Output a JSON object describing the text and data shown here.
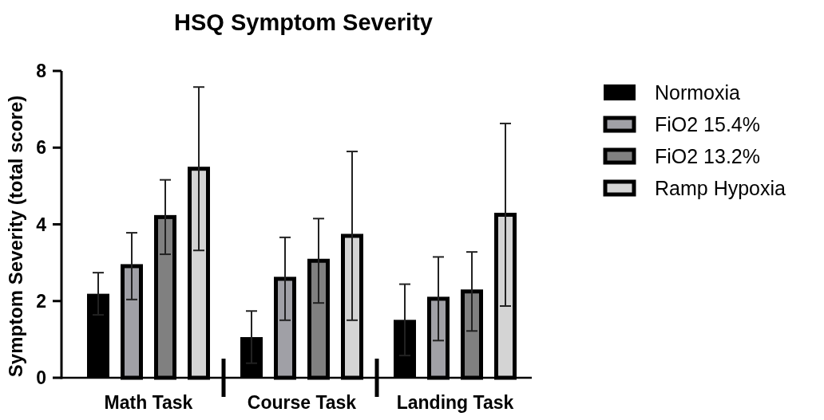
{
  "chart_data": {
    "type": "bar",
    "title": "HSQ Symptom Severity",
    "ylabel": "Symptom Severity (total score)",
    "categories": [
      "Math Task",
      "Course Task",
      "Landing Task"
    ],
    "series": [
      {
        "name": "Normoxia",
        "color": "#000000",
        "values": [
          2.19,
          1.06,
          1.51
        ],
        "errors": [
          0.55,
          0.68,
          0.93
        ]
      },
      {
        "name": "FiO2 15.4%",
        "color": "#a0a0a6",
        "values": [
          2.91,
          2.58,
          2.06
        ],
        "errors": [
          0.87,
          1.08,
          1.09
        ]
      },
      {
        "name": "FiO2 13.2%",
        "color": "#808080",
        "values": [
          4.19,
          3.05,
          2.25
        ],
        "errors": [
          0.97,
          1.1,
          1.03
        ]
      },
      {
        "name": "Ramp Hypoxia",
        "color": "#d4d4d4",
        "values": [
          5.45,
          3.7,
          4.25
        ],
        "errors": [
          2.13,
          2.2,
          2.38
        ]
      }
    ],
    "ylim": [
      0,
      8
    ],
    "yticks": [
      0,
      2,
      4,
      6,
      8
    ],
    "grid": false,
    "legend": "right"
  }
}
